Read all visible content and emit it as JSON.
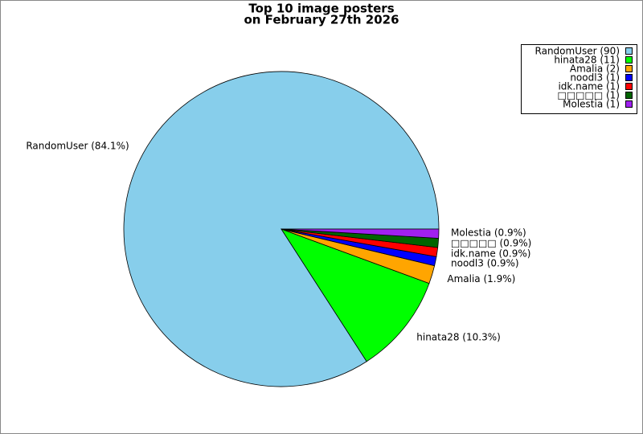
{
  "chart_data": {
    "type": "pie",
    "title": "Top 10 image posters",
    "subtitle": "on February 27th 2026",
    "categories": [
      "RandomUser",
      "hinata28",
      "Amalia",
      "noodl3",
      "idk.name",
      "□□□□□",
      "Molestia"
    ],
    "values": [
      90,
      11,
      2,
      1,
      1,
      1,
      1
    ],
    "colors": [
      "#87ceeb",
      "#00ff00",
      "#ffa500",
      "#0000ff",
      "#ff0000",
      "#006400",
      "#a020f0"
    ],
    "legend_labels": [
      "RandomUser (90)",
      "hinata28 (11)",
      "Amalia (2)",
      "noodl3 (1)",
      "idk.name (1)",
      "□□□□□ (1)",
      "Molestia (1)"
    ],
    "slice_labels": [
      "RandomUser (84.1%)",
      "hinata28 (10.3%)",
      "Amalia (1.9%)",
      "noodl3 (0.9%)",
      "idk.name (0.9%)",
      "□□□□□ (0.9%)",
      "Molestia (0.9%)"
    ],
    "legend": "upper right"
  }
}
